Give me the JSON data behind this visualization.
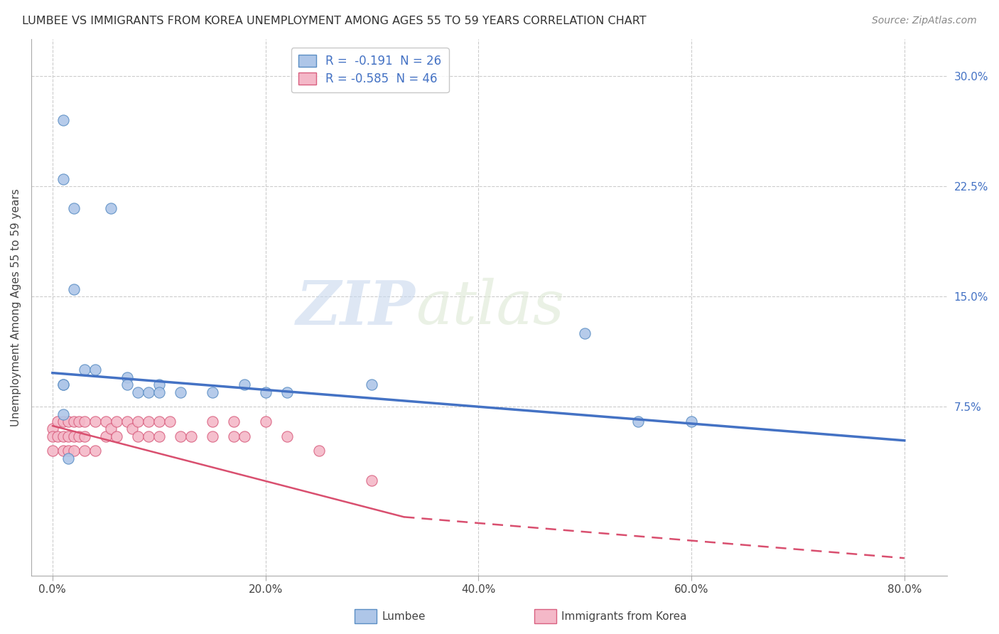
{
  "title": "LUMBEE VS IMMIGRANTS FROM KOREA UNEMPLOYMENT AMONG AGES 55 TO 59 YEARS CORRELATION CHART",
  "source": "Source: ZipAtlas.com",
  "ylabel": "Unemployment Among Ages 55 to 59 years",
  "x_tick_labels": [
    "0.0%",
    "20.0%",
    "40.0%",
    "60.0%",
    "80.0%"
  ],
  "x_tick_values": [
    0.0,
    0.2,
    0.4,
    0.6,
    0.8
  ],
  "y_tick_labels": [
    "7.5%",
    "15.0%",
    "22.5%",
    "30.0%"
  ],
  "y_tick_values": [
    0.075,
    0.15,
    0.225,
    0.3
  ],
  "xlim": [
    -0.02,
    0.84
  ],
  "ylim": [
    -0.04,
    0.325
  ],
  "background_color": "#ffffff",
  "grid_color": "#cccccc",
  "lumbee_color": "#aec6e8",
  "lumbee_edge_color": "#5b8ec4",
  "korea_color": "#f4b8c8",
  "korea_edge_color": "#d96080",
  "lumbee_line_color": "#4472c4",
  "korea_line_color": "#d94f6f",
  "watermark_zip": "ZIP",
  "watermark_atlas": "atlas",
  "legend_R_label1": "R =  -0.191  N = 26",
  "legend_R_label2": "R = -0.585  N = 46",
  "lumbee_x": [
    0.01,
    0.01,
    0.02,
    0.055,
    0.02,
    0.03,
    0.04,
    0.07,
    0.07,
    0.08,
    0.09,
    0.1,
    0.1,
    0.12,
    0.15,
    0.18,
    0.2,
    0.22,
    0.3,
    0.5,
    0.55,
    0.6,
    0.01,
    0.01,
    0.01,
    0.015
  ],
  "lumbee_y": [
    0.27,
    0.23,
    0.21,
    0.21,
    0.155,
    0.1,
    0.1,
    0.095,
    0.09,
    0.085,
    0.085,
    0.09,
    0.085,
    0.085,
    0.085,
    0.09,
    0.085,
    0.085,
    0.09,
    0.125,
    0.065,
    0.065,
    0.09,
    0.09,
    0.07,
    0.04
  ],
  "korea_x": [
    0.0,
    0.0,
    0.0,
    0.005,
    0.005,
    0.01,
    0.01,
    0.01,
    0.015,
    0.015,
    0.015,
    0.02,
    0.02,
    0.02,
    0.025,
    0.025,
    0.03,
    0.03,
    0.03,
    0.04,
    0.04,
    0.05,
    0.05,
    0.055,
    0.06,
    0.06,
    0.07,
    0.075,
    0.08,
    0.08,
    0.09,
    0.09,
    0.1,
    0.1,
    0.11,
    0.12,
    0.13,
    0.15,
    0.15,
    0.17,
    0.17,
    0.18,
    0.2,
    0.22,
    0.25,
    0.3
  ],
  "korea_y": [
    0.06,
    0.055,
    0.045,
    0.065,
    0.055,
    0.065,
    0.055,
    0.045,
    0.065,
    0.055,
    0.045,
    0.065,
    0.055,
    0.045,
    0.065,
    0.055,
    0.065,
    0.055,
    0.045,
    0.065,
    0.045,
    0.065,
    0.055,
    0.06,
    0.065,
    0.055,
    0.065,
    0.06,
    0.065,
    0.055,
    0.065,
    0.055,
    0.065,
    0.055,
    0.065,
    0.055,
    0.055,
    0.065,
    0.055,
    0.065,
    0.055,
    0.055,
    0.065,
    0.055,
    0.045,
    0.025
  ]
}
